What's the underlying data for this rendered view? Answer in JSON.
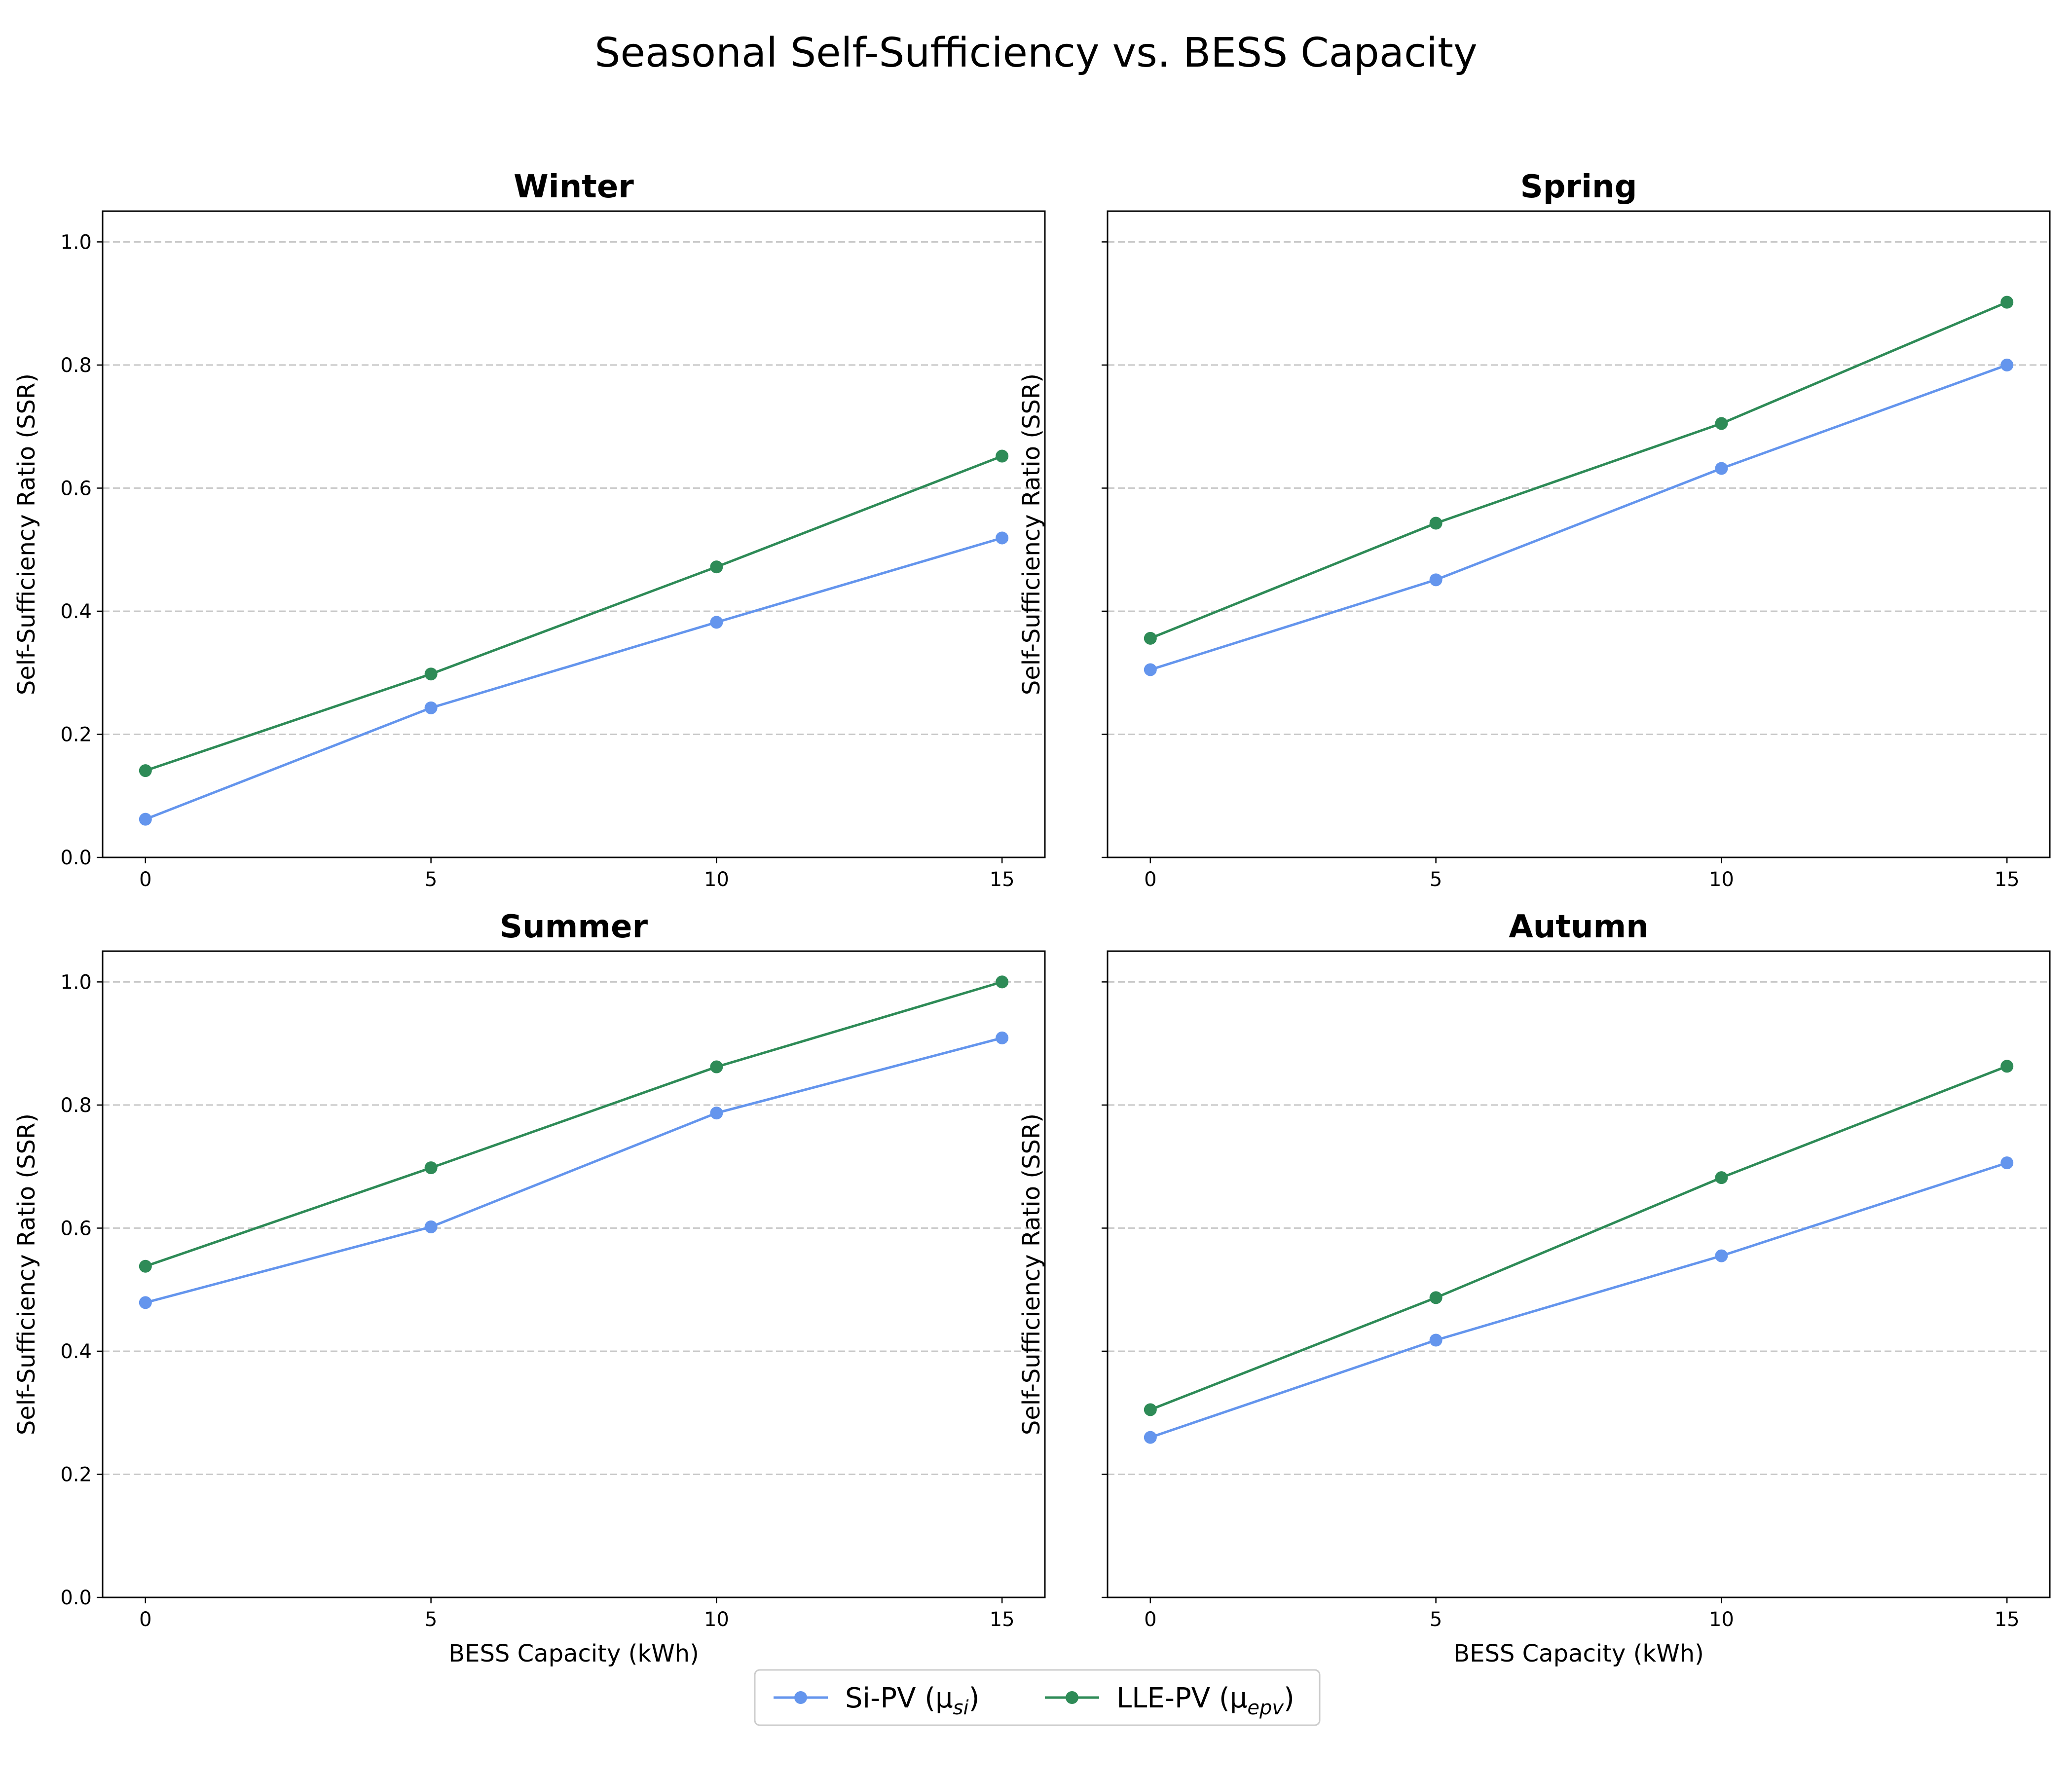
{
  "chart_data": {
    "type": "line",
    "title": "Seasonal Self-Sufficiency vs. BESS Capacity",
    "xlabel": "BESS Capacity (kWh)",
    "ylabel": "Self-Sufficiency Ratio (SSR)",
    "x": [
      0,
      5,
      10,
      15
    ],
    "xlim": [
      -0.75,
      15.75
    ],
    "ylim": [
      0,
      1.05
    ],
    "xticks": [
      0,
      5,
      10,
      15
    ],
    "yticks": [
      0.0,
      0.2,
      0.4,
      0.6,
      0.8,
      1.0
    ],
    "grid": "y-dashed",
    "legend_position": "bottom-center",
    "series_styles": [
      {
        "key": "si",
        "label": "Si-PV (μ",
        "sub": "si",
        "suffix": ")",
        "color": "#6495ED"
      },
      {
        "key": "lle",
        "label": "LLE-PV (μ",
        "sub": "epv",
        "suffix": ")",
        "color": "#2E8B57"
      }
    ],
    "panels": [
      {
        "title": "Winter",
        "si": [
          0.062,
          0.243,
          0.382,
          0.519
        ],
        "lle": [
          0.141,
          0.298,
          0.472,
          0.652
        ]
      },
      {
        "title": "Spring",
        "si": [
          0.305,
          0.451,
          0.632,
          0.8
        ],
        "lle": [
          0.356,
          0.543,
          0.705,
          0.902
        ]
      },
      {
        "title": "Summer",
        "si": [
          0.479,
          0.602,
          0.787,
          0.909
        ],
        "lle": [
          0.538,
          0.698,
          0.862,
          1.0
        ]
      },
      {
        "title": "Autumn",
        "si": [
          0.26,
          0.418,
          0.555,
          0.706
        ],
        "lle": [
          0.305,
          0.487,
          0.682,
          0.863
        ]
      }
    ]
  }
}
